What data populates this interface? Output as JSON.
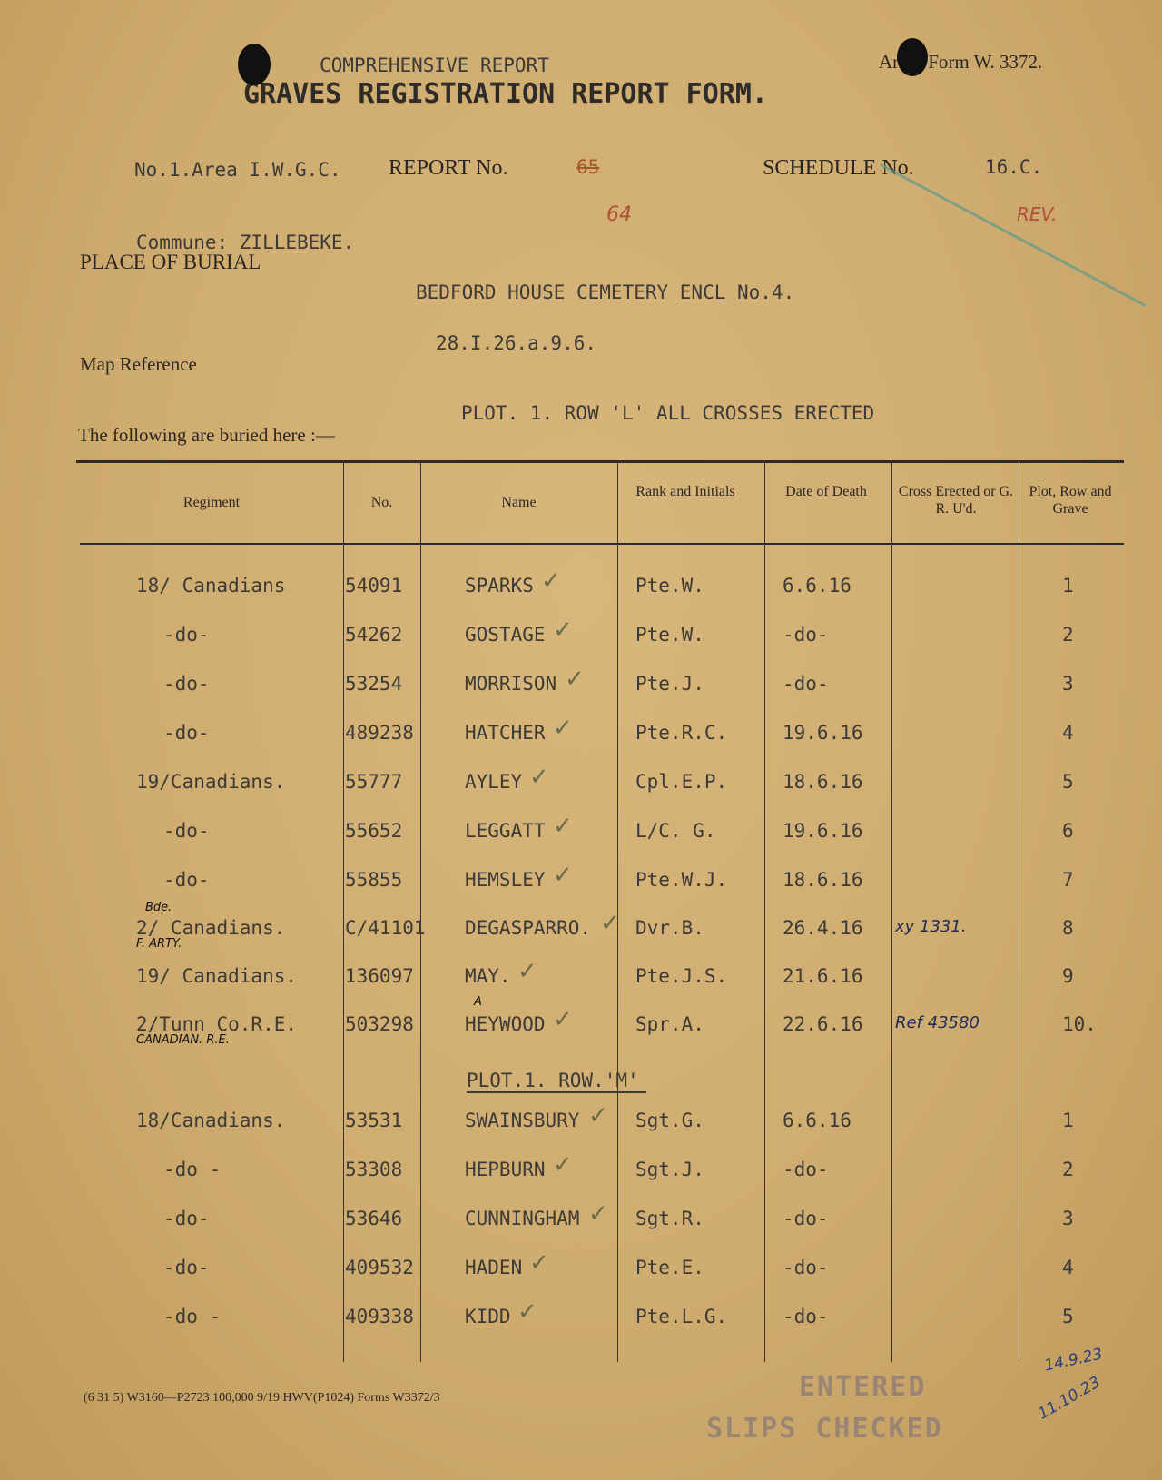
{
  "header": {
    "subtitle": "COMPREHENSIVE REPORT",
    "title": "GRAVES REGISTRATION REPORT FORM.",
    "form_number": "Army Form W. 3372.",
    "area": "No.1.Area I.W.G.C.",
    "report_label": "REPORT No.",
    "report_number_struck": "65",
    "report_number_corrected": "64",
    "schedule_label": "SCHEDULE No.",
    "schedule_number": "16.C.",
    "rev_note": "REV.",
    "commune": "Commune: ZILLEBEKE.",
    "place_label": "PLACE OF BURIAL",
    "place_value": "BEDFORD HOUSE CEMETERY ENCL No.4.",
    "map_label": "Map Reference",
    "map_value": "28.I.26.a.9.6.",
    "buried_label": "The following are buried here :—",
    "plot_note": "PLOT. 1. ROW 'L'  ALL CROSSES ERECTED"
  },
  "table": {
    "columns": [
      "Regiment",
      "No.",
      "Name",
      "Rank and Initials",
      "Date of Death",
      "Cross Erected or G. R. U'd.",
      "Plot, Row and Grave"
    ],
    "rows": [
      {
        "regiment": "18/ Canadians",
        "no": "54091",
        "name": "SPARKS",
        "rank": "Pte.W.",
        "date": "6.6.16",
        "cross": "",
        "grave": "1"
      },
      {
        "regiment": "-do-",
        "no": "54262",
        "name": "GOSTAGE",
        "rank": "Pte.W.",
        "date": "-do-",
        "cross": "",
        "grave": "2"
      },
      {
        "regiment": "-do-",
        "no": "53254",
        "name": "MORRISON",
        "rank": "Pte.J.",
        "date": "-do-",
        "cross": "",
        "grave": "3"
      },
      {
        "regiment": "-do-",
        "no": "489238",
        "name": "HATCHER",
        "rank": "Pte.R.C.",
        "date": "19.6.16",
        "cross": "",
        "grave": "4"
      },
      {
        "regiment": "19/Canadians.",
        "no": "55777",
        "name": "AYLEY",
        "rank": "Cpl.E.P.",
        "date": "18.6.16",
        "cross": "",
        "grave": "5"
      },
      {
        "regiment": "-do-",
        "no": "55652",
        "name": "LEGGATT",
        "rank": "L/C. G.",
        "date": "19.6.16",
        "cross": "",
        "grave": "6"
      },
      {
        "regiment": "-do-",
        "no": "55855",
        "name": "HEMSLEY",
        "rank": "Pte.W.J.",
        "date": "18.6.16",
        "cross": "",
        "grave": "7"
      },
      {
        "regiment": "2/ Canadians.",
        "regiment_note_above": "Bde.",
        "regiment_note_below": "F. ARTY.",
        "no": "C/41101",
        "name": "DEGASPARRO.",
        "rank": "Dvr.B.",
        "date": "26.4.16",
        "cross": "xy 1331.",
        "grave": "8"
      },
      {
        "regiment": "19/ Canadians.",
        "no": "136097",
        "name": "MAY.",
        "rank": "Pte.J.S.",
        "date": "21.6.16",
        "cross": "",
        "grave": "9"
      },
      {
        "regiment": "2/Tunn Co.R.E.",
        "regiment_note_below": "CANADIAN. R.E.",
        "no": "503298",
        "name": "HEYWOOD",
        "name_note": "A",
        "rank": "Spr.A.",
        "date": "22.6.16",
        "cross": "Ref 43580",
        "grave": "10."
      }
    ],
    "section2_heading": "PLOT.1. ROW.'M'",
    "rows2": [
      {
        "regiment": "18/Canadians.",
        "no": "53531",
        "name": "SWAINSBURY",
        "rank": "Sgt.G.",
        "date": "6.6.16",
        "cross": "",
        "grave": "1"
      },
      {
        "regiment": "-do -",
        "no": "53308",
        "name": "HEPBURN",
        "rank": "Sgt.J.",
        "date": "-do-",
        "cross": "",
        "grave": "2"
      },
      {
        "regiment": "-do-",
        "no": "53646",
        "name": "CUNNINGHAM",
        "rank": "Sgt.R.",
        "date": "-do-",
        "cross": "",
        "grave": "3"
      },
      {
        "regiment": "-do-",
        "no": "409532",
        "name": "HADEN",
        "rank": "Pte.E.",
        "date": "-do-",
        "cross": "",
        "grave": "4"
      },
      {
        "regiment": "-do -",
        "no": "409338",
        "name": "KIDD",
        "rank": "Pte.L.G.",
        "date": "-do-",
        "cross": "",
        "grave": "5"
      }
    ]
  },
  "footer": {
    "print_code": "(6 31 5)  W3160—P2723  100,000  9/19  HWV(P1024)  Forms W3372/3",
    "stamp_entered": "ENTERED",
    "stamp_slips": "SLIPS CHECKED",
    "initials_date_1": "14.9.23",
    "initials_date_2": "11.10.23"
  }
}
